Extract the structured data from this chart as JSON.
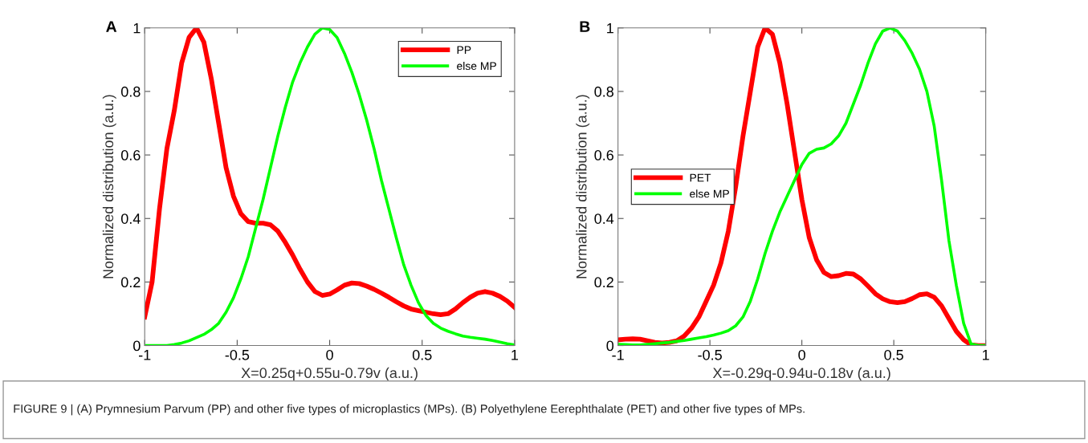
{
  "chart_data": [
    {
      "type": "line",
      "title": "A",
      "xlabel": "X=0.25q+0.55u-0.79v (a.u.)",
      "ylabel": "Normalized distribution (a.u.)",
      "x": [
        -1,
        -0.96,
        -0.92,
        -0.88,
        -0.84,
        -0.8,
        -0.76,
        -0.72,
        -0.68,
        -0.64,
        -0.6,
        -0.56,
        -0.52,
        -0.48,
        -0.44,
        -0.4,
        -0.36,
        -0.32,
        -0.28,
        -0.24,
        -0.2,
        -0.16,
        -0.12,
        -0.08,
        -0.04,
        0,
        0.04,
        0.08,
        0.12,
        0.16,
        0.2,
        0.24,
        0.28,
        0.32,
        0.36,
        0.4,
        0.44,
        0.48,
        0.52,
        0.56,
        0.6,
        0.64,
        0.68,
        0.72,
        0.76,
        0.8,
        0.84,
        0.88,
        0.92,
        0.96,
        1
      ],
      "series": [
        {
          "name": "PP",
          "color": "#ff0000",
          "values": [
            0.09,
            0.2,
            0.43,
            0.62,
            0.74,
            0.89,
            0.97,
            1.0,
            0.955,
            0.84,
            0.7,
            0.56,
            0.47,
            0.415,
            0.39,
            0.385,
            0.385,
            0.38,
            0.36,
            0.325,
            0.285,
            0.24,
            0.2,
            0.17,
            0.158,
            0.162,
            0.175,
            0.19,
            0.197,
            0.195,
            0.187,
            0.177,
            0.165,
            0.152,
            0.138,
            0.125,
            0.115,
            0.11,
            0.105,
            0.1,
            0.097,
            0.1,
            0.115,
            0.135,
            0.152,
            0.165,
            0.17,
            0.165,
            0.155,
            0.14,
            0.12
          ]
        },
        {
          "name": "else MP",
          "color": "#00ff00",
          "values": [
            0,
            0,
            0,
            0,
            0.003,
            0.008,
            0.015,
            0.025,
            0.035,
            0.05,
            0.07,
            0.105,
            0.15,
            0.21,
            0.28,
            0.37,
            0.46,
            0.56,
            0.66,
            0.75,
            0.83,
            0.89,
            0.94,
            0.98,
            1.0,
            0.995,
            0.97,
            0.92,
            0.86,
            0.79,
            0.71,
            0.62,
            0.52,
            0.43,
            0.34,
            0.255,
            0.19,
            0.135,
            0.095,
            0.07,
            0.055,
            0.045,
            0.037,
            0.03,
            0.026,
            0.023,
            0.02,
            0.016,
            0.011,
            0.006,
            0.002
          ]
        }
      ],
      "xlim": [
        -1,
        1
      ],
      "xticks": [
        -1,
        -0.5,
        0,
        0.5,
        1
      ],
      "ylim": [
        0,
        1
      ],
      "yticks": [
        0,
        0.2,
        0.4,
        0.6,
        0.8,
        1
      ],
      "grid": false,
      "legend": "top right",
      "marker": "none",
      "line_style": "solid",
      "annotations": [
        "FIGURE 9 | (A) Prymnesium Parvum (PP) and other five types of microplastics (MPs). (B) Polyethylene Eerephthalate (PET) and other five types of MPs."
      ]
    },
    {
      "type": "line",
      "title": "B",
      "xlabel": "X=-0.29q-0.94u-0.18v (a.u.)",
      "ylabel": "Normalized distribution (a.u.)",
      "x": [
        -1,
        -0.96,
        -0.92,
        -0.88,
        -0.84,
        -0.8,
        -0.76,
        -0.72,
        -0.68,
        -0.64,
        -0.6,
        -0.56,
        -0.52,
        -0.48,
        -0.44,
        -0.4,
        -0.36,
        -0.32,
        -0.28,
        -0.24,
        -0.2,
        -0.16,
        -0.12,
        -0.08,
        -0.04,
        0,
        0.04,
        0.08,
        0.12,
        0.16,
        0.2,
        0.24,
        0.28,
        0.32,
        0.36,
        0.4,
        0.44,
        0.48,
        0.52,
        0.56,
        0.6,
        0.64,
        0.68,
        0.72,
        0.76,
        0.8,
        0.84,
        0.88,
        0.92,
        0.96,
        1
      ],
      "series": [
        {
          "name": "PET",
          "color": "#ff0000",
          "values": [
            0.018,
            0.02,
            0.021,
            0.02,
            0.015,
            0.01,
            0.008,
            0.01,
            0.015,
            0.03,
            0.055,
            0.09,
            0.14,
            0.19,
            0.26,
            0.36,
            0.5,
            0.66,
            0.8,
            0.94,
            1.0,
            0.98,
            0.89,
            0.76,
            0.61,
            0.46,
            0.34,
            0.27,
            0.23,
            0.217,
            0.22,
            0.227,
            0.225,
            0.21,
            0.187,
            0.163,
            0.147,
            0.138,
            0.135,
            0.138,
            0.148,
            0.16,
            0.163,
            0.152,
            0.125,
            0.085,
            0.045,
            0.018,
            0.002,
            0,
            0
          ]
        },
        {
          "name": "else MP",
          "color": "#00ff00",
          "values": [
            0.004,
            0.003,
            0.002,
            0.002,
            0.004,
            0.006,
            0.008,
            0.01,
            0.013,
            0.016,
            0.02,
            0.024,
            0.028,
            0.033,
            0.039,
            0.047,
            0.062,
            0.09,
            0.14,
            0.21,
            0.29,
            0.36,
            0.42,
            0.47,
            0.52,
            0.57,
            0.605,
            0.618,
            0.622,
            0.635,
            0.66,
            0.7,
            0.76,
            0.82,
            0.89,
            0.95,
            0.99,
            1.0,
            0.99,
            0.96,
            0.92,
            0.87,
            0.8,
            0.69,
            0.52,
            0.33,
            0.19,
            0.07,
            0.005,
            0,
            0
          ]
        }
      ],
      "xlim": [
        -1,
        1
      ],
      "xticks": [
        -1,
        -0.5,
        0,
        0.5,
        1
      ],
      "ylim": [
        0,
        1
      ],
      "yticks": [
        0,
        0.2,
        0.4,
        0.6,
        0.8,
        1
      ],
      "grid": false,
      "legend": "left",
      "marker": "none",
      "line_style": "solid"
    }
  ]
}
